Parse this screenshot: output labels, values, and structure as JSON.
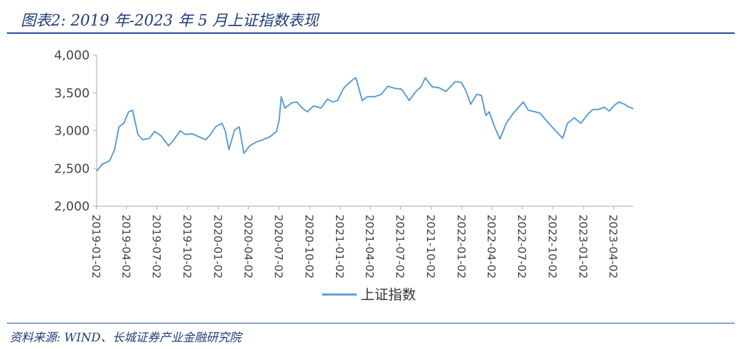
{
  "header": {
    "title": "图表2: 2019 年-2023 年 5 月上证指数表现"
  },
  "footer": {
    "source": "资料来源: WIND、长城证券产业金融研究院"
  },
  "colors": {
    "series": "#5b9bd5",
    "axis": "#aaaaaa",
    "rule": "#1f4e9a"
  },
  "chart_data": {
    "type": "line",
    "ylim": [
      2000,
      4000
    ],
    "yticks": [
      "2,000",
      "2,500",
      "3,000",
      "3,500",
      "4,000"
    ],
    "ytick_values": [
      2000,
      2500,
      3000,
      3500,
      4000
    ],
    "xticks": [
      "2019-01-02",
      "2019-04-02",
      "2019-07-02",
      "2019-10-02",
      "2020-01-02",
      "2020-04-02",
      "2020-07-02",
      "2020-10-02",
      "2021-01-02",
      "2021-04-02",
      "2021-07-02",
      "2021-10-02",
      "2022-01-02",
      "2022-04-02",
      "2022-07-02",
      "2022-10-02",
      "2023-01-02",
      "2023-04-02"
    ],
    "legend": {
      "position": "bottom"
    },
    "series": [
      {
        "name": "上证指数",
        "x": [
          "2019-01-02",
          "2019-01-20",
          "2019-02-10",
          "2019-02-25",
          "2019-03-10",
          "2019-03-25",
          "2019-04-08",
          "2019-04-20",
          "2019-05-06",
          "2019-05-20",
          "2019-06-10",
          "2019-06-25",
          "2019-07-15",
          "2019-08-06",
          "2019-08-20",
          "2019-09-10",
          "2019-09-25",
          "2019-10-15",
          "2019-11-05",
          "2019-11-25",
          "2019-12-10",
          "2019-12-25",
          "2020-01-13",
          "2020-01-23",
          "2020-02-03",
          "2020-02-20",
          "2020-03-05",
          "2020-03-19",
          "2020-04-05",
          "2020-04-25",
          "2020-05-15",
          "2020-06-05",
          "2020-06-25",
          "2020-07-03",
          "2020-07-09",
          "2020-07-20",
          "2020-08-10",
          "2020-08-25",
          "2020-09-10",
          "2020-09-25",
          "2020-10-15",
          "2020-11-05",
          "2020-11-25",
          "2020-12-10",
          "2020-12-25",
          "2021-01-12",
          "2021-01-25",
          "2021-02-10",
          "2021-02-18",
          "2021-03-09",
          "2021-03-25",
          "2021-04-15",
          "2021-05-05",
          "2021-05-25",
          "2021-06-15",
          "2021-07-05",
          "2021-07-28",
          "2021-08-15",
          "2021-09-01",
          "2021-09-14",
          "2021-10-05",
          "2021-10-25",
          "2021-11-15",
          "2021-12-13",
          "2021-12-31",
          "2022-01-15",
          "2022-01-28",
          "2022-02-15",
          "2022-03-01",
          "2022-03-15",
          "2022-03-25",
          "2022-04-10",
          "2022-04-26",
          "2022-05-15",
          "2022-06-05",
          "2022-06-25",
          "2022-07-05",
          "2022-07-20",
          "2022-08-10",
          "2022-08-25",
          "2022-09-15",
          "2022-10-10",
          "2022-10-31",
          "2022-11-15",
          "2022-12-05",
          "2022-12-25",
          "2023-01-15",
          "2023-01-30",
          "2023-02-15",
          "2023-03-05",
          "2023-03-20",
          "2023-04-05",
          "2023-04-18",
          "2023-05-05",
          "2023-05-15",
          "2023-05-31"
        ],
        "y": [
          2465,
          2560,
          2600,
          2750,
          3050,
          3100,
          3250,
          3270,
          2950,
          2880,
          2900,
          2990,
          2930,
          2800,
          2870,
          3000,
          2950,
          2960,
          2920,
          2880,
          2950,
          3050,
          3100,
          3000,
          2750,
          3010,
          3050,
          2700,
          2800,
          2850,
          2880,
          2920,
          2990,
          3150,
          3450,
          3300,
          3370,
          3380,
          3300,
          3250,
          3330,
          3300,
          3420,
          3380,
          3400,
          3560,
          3620,
          3680,
          3700,
          3400,
          3450,
          3450,
          3480,
          3590,
          3560,
          3550,
          3400,
          3510,
          3580,
          3700,
          3580,
          3570,
          3520,
          3650,
          3640,
          3520,
          3350,
          3480,
          3470,
          3200,
          3250,
          3050,
          2890,
          3100,
          3230,
          3330,
          3380,
          3270,
          3250,
          3230,
          3120,
          3000,
          2900,
          3100,
          3170,
          3100,
          3220,
          3280,
          3280,
          3310,
          3260,
          3340,
          3380,
          3350,
          3320,
          3290
        ]
      }
    ]
  }
}
